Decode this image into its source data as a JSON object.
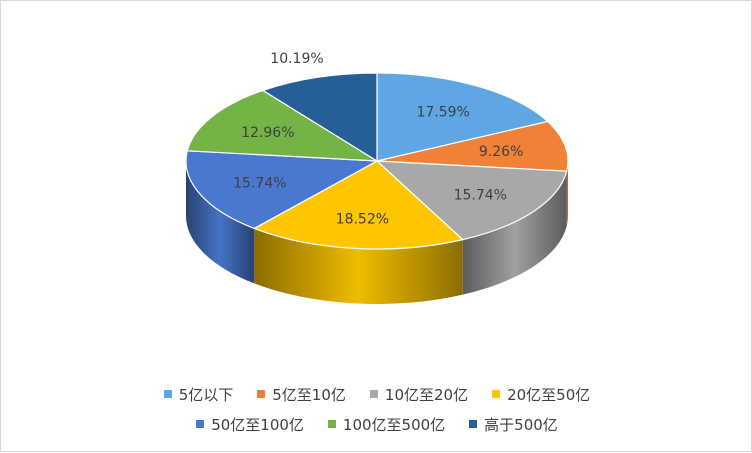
{
  "chart_data": {
    "type": "pie",
    "title": "",
    "categories": [
      "5亿以下",
      "5亿至10亿",
      "10亿至20亿",
      "20亿至50亿",
      "50亿至100亿",
      "100亿至500亿",
      "高于500亿"
    ],
    "values": [
      17.59,
      9.26,
      15.74,
      18.52,
      15.74,
      12.96,
      10.19
    ],
    "labels": [
      "17.59%",
      "9.26%",
      "15.74%",
      "18.52%",
      "15.74%",
      "12.96%",
      "10.19%"
    ],
    "colors": [
      "#5ea7e4",
      "#f08136",
      "#a8a8a8",
      "#fdc600",
      "#4a78d0",
      "#74b446",
      "#265f97"
    ],
    "legend_position": "bottom",
    "style": "3d"
  }
}
